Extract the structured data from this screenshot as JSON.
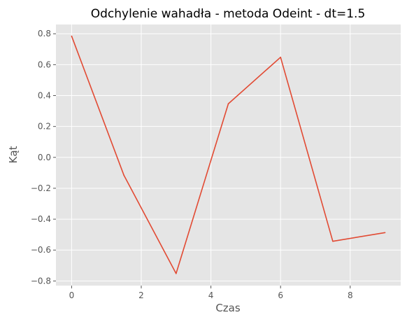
{
  "chart_data": {
    "type": "line",
    "title": "Odchylenie wahadła - metoda Odeint - dt=1.5",
    "xlabel": "Czas",
    "ylabel": "Kąt",
    "xlim": [
      -0.45,
      9.45
    ],
    "ylim": [
      -0.83,
      0.86
    ],
    "xticks": [
      0,
      2,
      4,
      6,
      8
    ],
    "xtick_labels": [
      "0",
      "2",
      "4",
      "6",
      "8"
    ],
    "yticks": [
      -0.8,
      -0.6,
      -0.4,
      -0.2,
      0.0,
      0.2,
      0.4,
      0.6,
      0.8
    ],
    "ytick_labels": [
      "−0.8",
      "−0.6",
      "−0.4",
      "−0.2",
      "0.0",
      "0.2",
      "0.4",
      "0.6",
      "0.8"
    ],
    "grid": true,
    "series": [
      {
        "color": "#e24a33",
        "x": [
          0,
          1.5,
          3,
          4.5,
          6,
          7.5,
          9
        ],
        "y": [
          0.785,
          -0.115,
          -0.752,
          0.347,
          0.648,
          -0.543,
          -0.487
        ]
      }
    ]
  },
  "style": {
    "plot_background": "#e5e5e5",
    "grid_color": "#ffffff",
    "text_color": "#555555"
  }
}
